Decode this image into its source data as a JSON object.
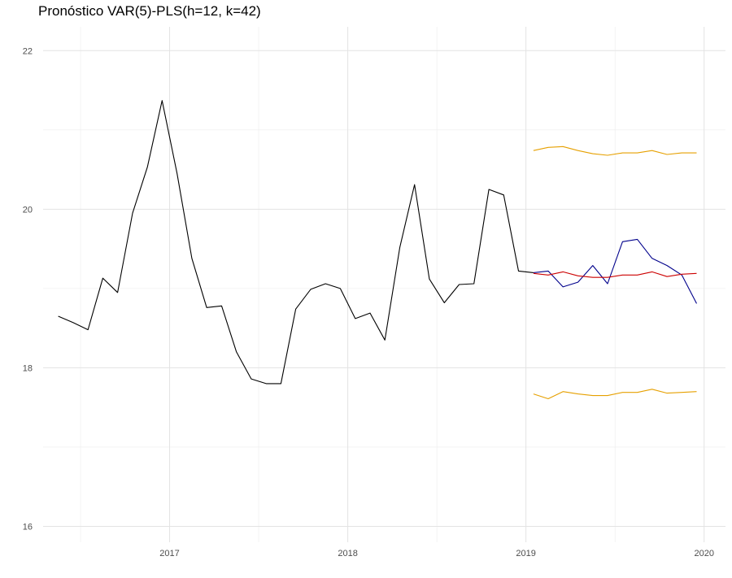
{
  "title": "Pronóstico VAR(5)-PLS(h=12, k=42)",
  "chart_data": {
    "type": "line",
    "title": "Pronóstico VAR(5)-PLS(h=12, k=42)",
    "xlabel": "",
    "ylabel": "",
    "xlim": [
      2016.29,
      2020.12
    ],
    "ylim": [
      15.8,
      22.3
    ],
    "grid": true,
    "legend": "none",
    "x_ticks": [
      {
        "value": 2017,
        "label": "2017"
      },
      {
        "value": 2018,
        "label": "2018"
      },
      {
        "value": 2019,
        "label": "2019"
      },
      {
        "value": 2020,
        "label": "2020"
      }
    ],
    "x_minor_ticks": [
      2016.5,
      2017.5,
      2018.5,
      2019.5
    ],
    "y_ticks": [
      {
        "value": 16,
        "label": "16"
      },
      {
        "value": 18,
        "label": "18"
      },
      {
        "value": 20,
        "label": "20"
      },
      {
        "value": 22,
        "label": "22"
      }
    ],
    "y_minor_ticks": [
      17,
      19,
      21
    ],
    "series": [
      {
        "color": "#000000",
        "points": [
          [
            2016.375,
            18.65
          ],
          [
            2016.458,
            18.57
          ],
          [
            2016.542,
            18.48
          ],
          [
            2016.625,
            19.13
          ],
          [
            2016.708,
            18.95
          ],
          [
            2016.792,
            19.95
          ],
          [
            2016.875,
            20.53
          ],
          [
            2016.958,
            21.37
          ],
          [
            2017.042,
            20.45
          ],
          [
            2017.125,
            19.38
          ],
          [
            2017.208,
            18.76
          ],
          [
            2017.292,
            18.78
          ],
          [
            2017.375,
            18.2
          ],
          [
            2017.458,
            17.86
          ],
          [
            2017.542,
            17.8
          ],
          [
            2017.625,
            17.8
          ],
          [
            2017.708,
            18.74
          ],
          [
            2017.792,
            18.99
          ],
          [
            2017.875,
            19.06
          ],
          [
            2017.958,
            19.0
          ],
          [
            2018.042,
            18.62
          ],
          [
            2018.125,
            18.69
          ],
          [
            2018.208,
            18.35
          ],
          [
            2018.292,
            19.52
          ],
          [
            2018.375,
            20.31
          ],
          [
            2018.458,
            19.12
          ],
          [
            2018.542,
            18.82
          ],
          [
            2018.625,
            19.05
          ],
          [
            2018.708,
            19.06
          ],
          [
            2018.792,
            20.25
          ],
          [
            2018.875,
            20.18
          ],
          [
            2018.958,
            19.22
          ],
          [
            2019.042,
            19.2
          ]
        ]
      },
      {
        "color": "#00008b",
        "points": [
          [
            2019.042,
            19.2
          ],
          [
            2019.125,
            19.22
          ],
          [
            2019.208,
            19.02
          ],
          [
            2019.292,
            19.08
          ],
          [
            2019.375,
            19.29
          ],
          [
            2019.458,
            19.06
          ],
          [
            2019.542,
            19.59
          ],
          [
            2019.625,
            19.62
          ],
          [
            2019.708,
            19.38
          ],
          [
            2019.792,
            19.29
          ],
          [
            2019.875,
            19.17
          ],
          [
            2019.958,
            18.81
          ]
        ]
      },
      {
        "color": "#cc0000",
        "points": [
          [
            2019.042,
            19.19
          ],
          [
            2019.125,
            19.17
          ],
          [
            2019.208,
            19.21
          ],
          [
            2019.292,
            19.16
          ],
          [
            2019.375,
            19.14
          ],
          [
            2019.458,
            19.14
          ],
          [
            2019.542,
            19.17
          ],
          [
            2019.625,
            19.17
          ],
          [
            2019.708,
            19.21
          ],
          [
            2019.792,
            19.15
          ],
          [
            2019.875,
            19.18
          ],
          [
            2019.958,
            19.19
          ]
        ]
      },
      {
        "color": "#e6a000",
        "points": [
          [
            2019.042,
            20.74
          ],
          [
            2019.125,
            20.78
          ],
          [
            2019.208,
            20.79
          ],
          [
            2019.292,
            20.74
          ],
          [
            2019.375,
            20.7
          ],
          [
            2019.458,
            20.68
          ],
          [
            2019.542,
            20.71
          ],
          [
            2019.625,
            20.71
          ],
          [
            2019.708,
            20.74
          ],
          [
            2019.792,
            20.69
          ],
          [
            2019.875,
            20.71
          ],
          [
            2019.958,
            20.71
          ]
        ]
      },
      {
        "color": "#e6a000",
        "points": [
          [
            2019.042,
            17.67
          ],
          [
            2019.125,
            17.61
          ],
          [
            2019.208,
            17.7
          ],
          [
            2019.292,
            17.67
          ],
          [
            2019.375,
            17.65
          ],
          [
            2019.458,
            17.65
          ],
          [
            2019.542,
            17.69
          ],
          [
            2019.625,
            17.69
          ],
          [
            2019.708,
            17.73
          ],
          [
            2019.792,
            17.68
          ],
          [
            2019.875,
            17.69
          ],
          [
            2019.958,
            17.7
          ]
        ]
      }
    ]
  }
}
